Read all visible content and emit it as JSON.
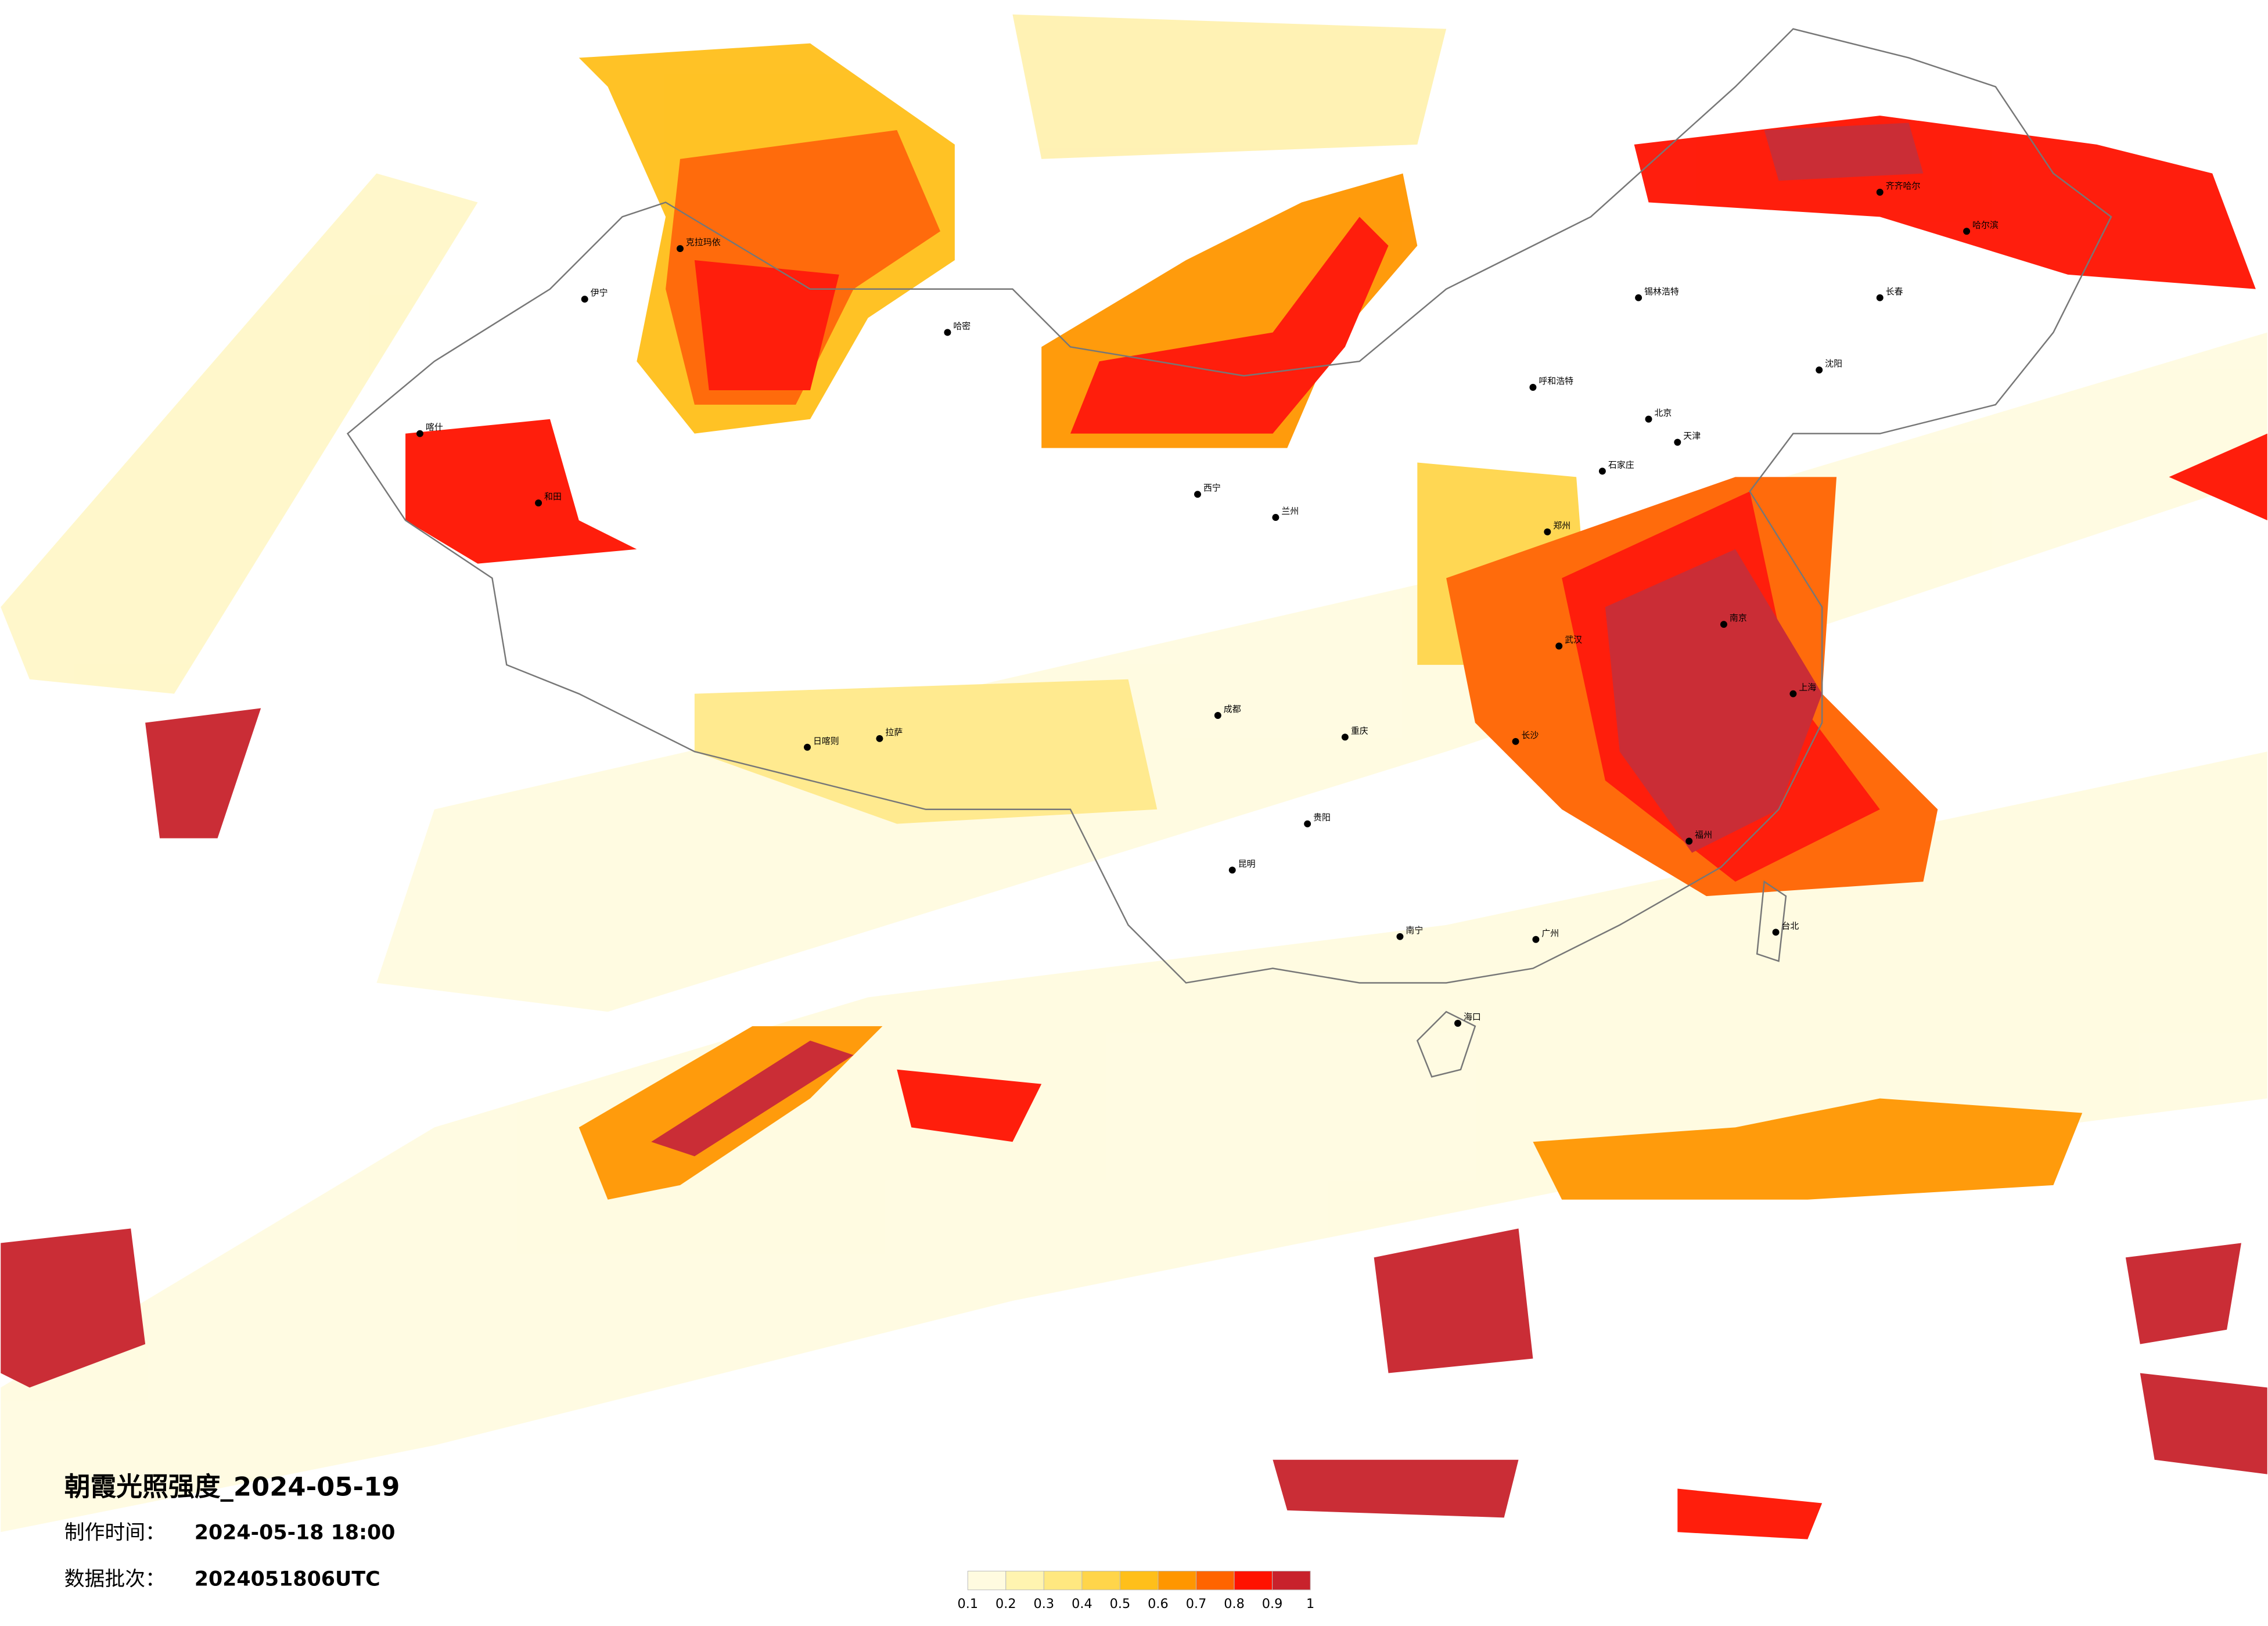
{
  "title": "朝霞光照强度_2024-05-19",
  "made_time": {
    "label": "制作时间：",
    "value": "2024-05-18 18:00"
  },
  "batch": {
    "label": "数据批次：",
    "value": "2024051806UTC"
  },
  "legend": {
    "colors": [
      "#fffbe0",
      "#fff4b0",
      "#ffe880",
      "#ffd54a",
      "#ffbf1a",
      "#ff9600",
      "#ff6400",
      "#ff1200",
      "#c8222c"
    ],
    "ticks": [
      0.1,
      0.2,
      0.3,
      0.4,
      0.5,
      0.6,
      0.7,
      0.8,
      0.9,
      1
    ]
  },
  "cities": [
    "克拉玛依",
    "伊宁",
    "哈密",
    "喀什",
    "和田",
    "拉萨",
    "日喀则",
    "西宁",
    "兰州",
    "成都",
    "重庆",
    "昆明",
    "贵阳",
    "南宁",
    "海口",
    "广州",
    "福州",
    "上海",
    "南京",
    "武汉",
    "长沙",
    "郑州",
    "北京",
    "天津",
    "石家庄",
    "呼和浩特",
    "沈阳",
    "长春",
    "哈尔滨",
    "齐齐哈尔",
    "锡林浩特",
    "台北"
  ]
}
